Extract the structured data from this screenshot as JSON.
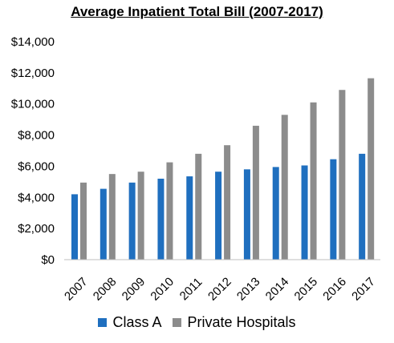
{
  "chart_data": {
    "type": "bar",
    "title": "Average Inpatient Total Bill (2007-2017)",
    "categories": [
      "2007",
      "2008",
      "2009",
      "2010",
      "2011",
      "2012",
      "2013",
      "2014",
      "2015",
      "2016",
      "2017"
    ],
    "series": [
      {
        "name": "Class A",
        "color": "#1f6fbf",
        "values": [
          4200,
          4550,
          4950,
          5200,
          5350,
          5650,
          5800,
          5950,
          6050,
          6450,
          6800
        ]
      },
      {
        "name": "Private Hospitals",
        "color": "#8c8c8c",
        "values": [
          4950,
          5500,
          5650,
          6250,
          6800,
          7350,
          8600,
          9300,
          10100,
          10900,
          11650
        ]
      }
    ],
    "ylim": [
      0,
      14000
    ],
    "yticks": [
      0,
      2000,
      4000,
      6000,
      8000,
      10000,
      12000,
      14000
    ],
    "ytick_labels": [
      "$0",
      "$2,000",
      "$4,000",
      "$6,000",
      "$8,000",
      "$10,000",
      "$12,000",
      "$14,000"
    ],
    "grid": false,
    "legend": "bottom"
  }
}
